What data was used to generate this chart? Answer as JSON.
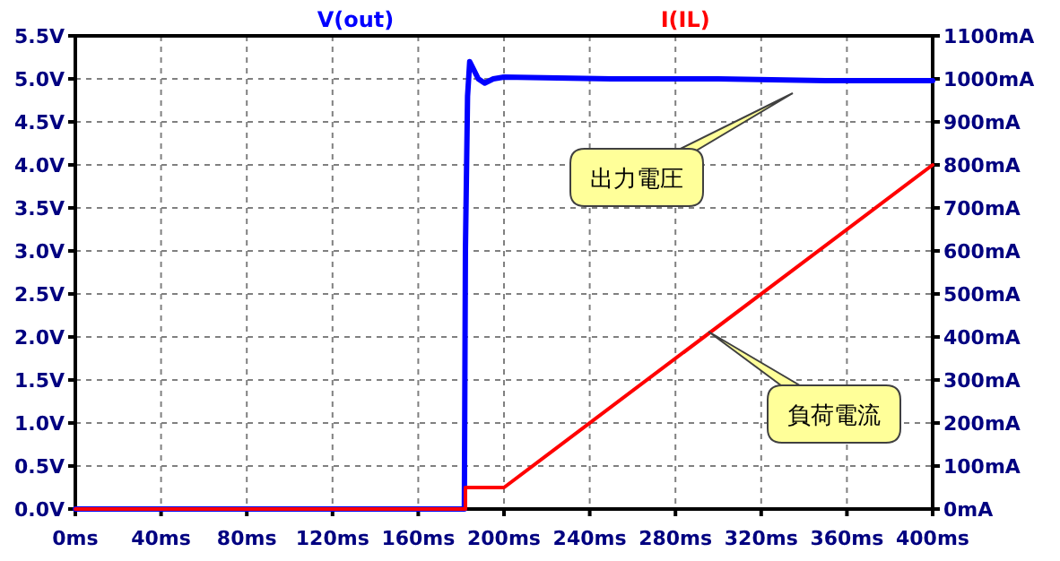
{
  "chart_data": {
    "type": "line",
    "legend": "top",
    "grid": true,
    "xlim": [
      0,
      400
    ],
    "xticks": [
      {
        "value": 0,
        "label": "0ms"
      },
      {
        "value": 40,
        "label": "40ms"
      },
      {
        "value": 80,
        "label": "80ms"
      },
      {
        "value": 120,
        "label": "120ms"
      },
      {
        "value": 160,
        "label": "160ms"
      },
      {
        "value": 200,
        "label": "200ms"
      },
      {
        "value": 240,
        "label": "240ms"
      },
      {
        "value": 280,
        "label": "280ms"
      },
      {
        "value": 320,
        "label": "320ms"
      },
      {
        "value": 360,
        "label": "360ms"
      },
      {
        "value": 400,
        "label": "400ms"
      }
    ],
    "ylim": [
      0,
      5.5
    ],
    "yticks": [
      {
        "value": 0,
        "label": "0.0V"
      },
      {
        "value": 0.5,
        "label": "0.5V"
      },
      {
        "value": 1,
        "label": "1.0V"
      },
      {
        "value": 1.5,
        "label": "1.5V"
      },
      {
        "value": 2,
        "label": "2.0V"
      },
      {
        "value": 2.5,
        "label": "2.5V"
      },
      {
        "value": 3,
        "label": "3.0V"
      },
      {
        "value": 3.5,
        "label": "3.5V"
      },
      {
        "value": 4,
        "label": "4.0V"
      },
      {
        "value": 4.5,
        "label": "4.5V"
      },
      {
        "value": 5,
        "label": "5.0V"
      },
      {
        "value": 5.5,
        "label": "5.5V"
      }
    ],
    "y2lim": [
      0,
      1100
    ],
    "y2ticks": [
      {
        "value": 0,
        "label": "0mA"
      },
      {
        "value": 100,
        "label": "100mA"
      },
      {
        "value": 200,
        "label": "200mA"
      },
      {
        "value": 300,
        "label": "300mA"
      },
      {
        "value": 400,
        "label": "400mA"
      },
      {
        "value": 500,
        "label": "500mA"
      },
      {
        "value": 600,
        "label": "600mA"
      },
      {
        "value": 700,
        "label": "700mA"
      },
      {
        "value": 800,
        "label": "800mA"
      },
      {
        "value": 900,
        "label": "900mA"
      },
      {
        "value": 1000,
        "label": "1000mA"
      },
      {
        "value": 1100,
        "label": "1100mA"
      }
    ],
    "series": [
      {
        "name": "V(out)",
        "color": "#0000ff",
        "x": [
          0,
          181.5,
          182,
          183,
          184,
          186,
          188,
          191,
          195,
          200,
          250,
          300,
          350,
          400
        ],
        "values": [
          0,
          0,
          3.0,
          4.8,
          5.2,
          5.1,
          5.0,
          4.95,
          5.0,
          5.02,
          5.0,
          5.0,
          4.98,
          4.98
        ]
      },
      {
        "name": "I(IL)",
        "color": "#ff0000",
        "axis": "y2",
        "x": [
          0,
          182,
          182,
          200,
          400
        ],
        "values": [
          0,
          0,
          50,
          50,
          800
        ]
      }
    ],
    "annotations": [
      "出力電圧",
      "負荷電流"
    ]
  }
}
